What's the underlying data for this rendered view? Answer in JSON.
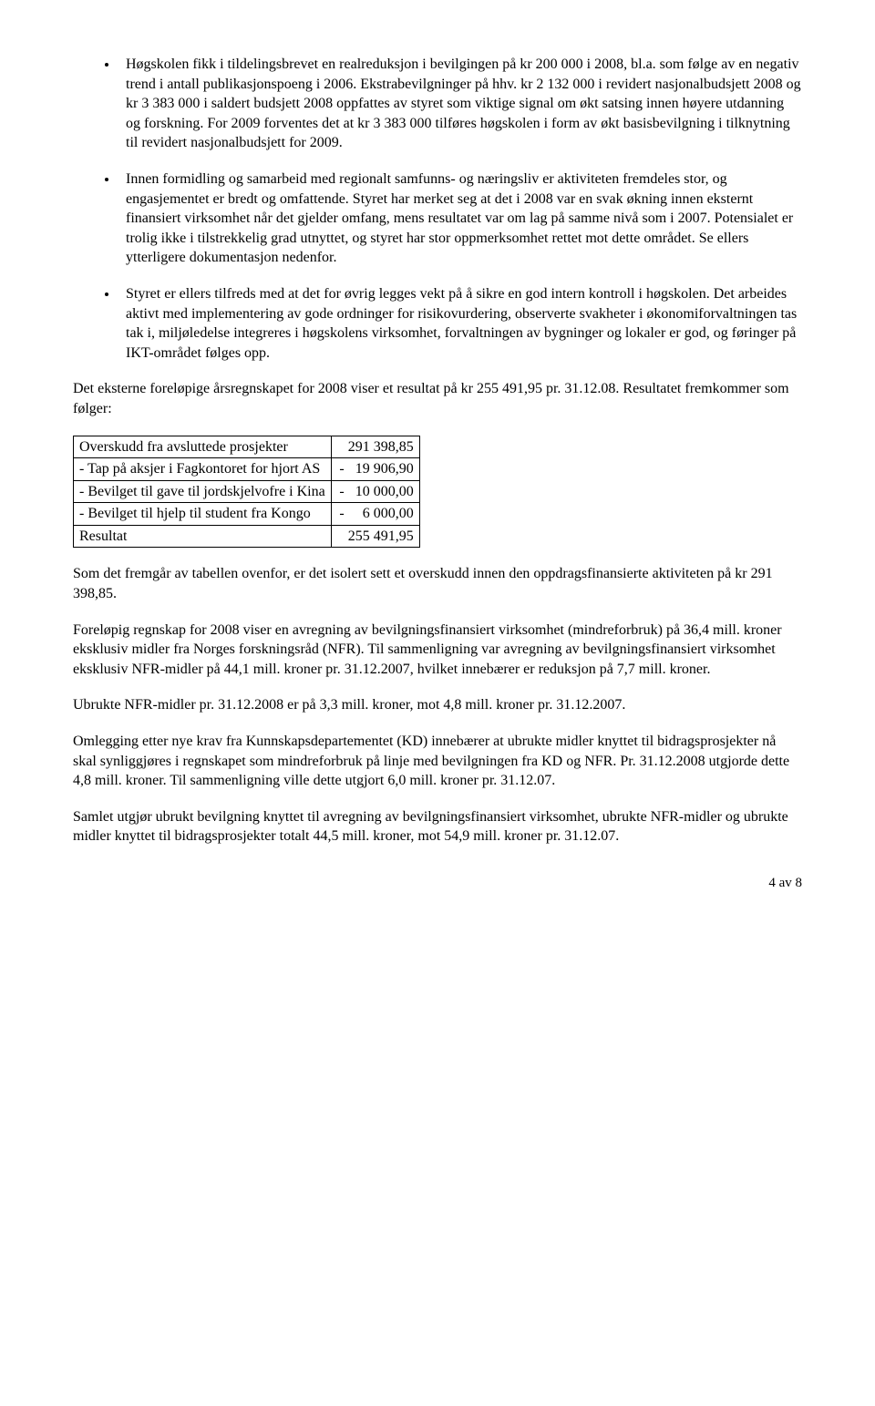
{
  "bullets": [
    "Høgskolen fikk i tildelingsbrevet en realreduksjon i bevilgingen på kr 200 000 i 2008, bl.a. som følge av en negativ trend i antall publikasjonspoeng i 2006. Ekstrabevilgninger på hhv. kr 2 132 000 i revidert nasjonalbudsjett 2008 og kr 3 383 000 i saldert budsjett 2008 oppfattes av styret som viktige signal om økt satsing innen høyere utdanning og forskning. For 2009 forventes det at kr 3 383 000 tilføres høgskolen i form av økt basisbevilgning i tilknytning til revidert nasjonalbudsjett for 2009.",
    "Innen formidling og samarbeid med regionalt samfunns- og næringsliv er aktiviteten fremdeles stor, og engasjementet er bredt og omfattende. Styret har merket seg at det i 2008 var en svak økning innen eksternt finansiert virksomhet når det gjelder omfang, mens resultatet var om lag på samme nivå som i 2007. Potensialet er trolig ikke i tilstrekkelig grad utnyttet, og styret har stor oppmerksomhet rettet mot dette området. Se ellers ytterligere dokumentasjon nedenfor.",
    "Styret er ellers tilfreds med at det for øvrig legges vekt på å sikre en god intern kontroll i høgskolen. Det arbeides aktivt med implementering av gode ordninger for risikovurdering, observerte svakheter i økonomiforvaltningen tas tak i, miljøledelse integreres i høgskolens virksomhet, forvaltningen av bygninger og lokaler er god, og føringer på IKT-området følges opp."
  ],
  "intro_after_bullets": "Det eksterne foreløpige årsregnskapet for 2008 viser et resultat på kr 255 491,95 pr. 31.12.08. Resultatet fremkommer som følger:",
  "table": {
    "rows": [
      {
        "label": "Overskudd fra avsluttede prosjekter",
        "value": "   291 398,85"
      },
      {
        "label": "- Tap på aksjer i Fagkontoret for hjort AS",
        "value": "-   19 906,90"
      },
      {
        "label": "- Bevilget til gave til jordskjelvofre i Kina",
        "value": "-   10 000,00"
      },
      {
        "label": "- Bevilget til hjelp til student fra Kongo",
        "value": "-     6 000,00"
      },
      {
        "label": "Resultat",
        "value": "   255 491,95"
      }
    ]
  },
  "paragraphs_after_table": [
    "Som det fremgår av tabellen ovenfor, er det isolert sett et overskudd innen den oppdragsfinansierte aktiviteten på kr 291 398,85.",
    "Foreløpig regnskap for 2008 viser en avregning av bevilgningsfinansiert virksomhet (mindreforbruk) på 36,4 mill. kroner eksklusiv midler fra Norges forskningsråd (NFR). Til sammenligning var avregning av bevilgningsfinansiert virksomhet eksklusiv NFR-midler på 44,1 mill. kroner pr. 31.12.2007, hvilket innebærer er reduksjon på 7,7 mill. kroner.",
    "Ubrukte NFR-midler pr. 31.12.2008 er på 3,3 mill. kroner, mot 4,8 mill. kroner pr. 31.12.2007.",
    "Omlegging etter nye krav fra Kunnskapsdepartementet (KD) innebærer at ubrukte midler knyttet til bidragsprosjekter nå skal synliggjøres i regnskapet som mindreforbruk på linje med bevilgningen fra KD og NFR. Pr. 31.12.2008 utgjorde dette 4,8 mill. kroner. Til sammenligning ville dette utgjort 6,0 mill. kroner pr. 31.12.07.",
    "Samlet utgjør ubrukt bevilgning knyttet til avregning av bevilgningsfinansiert virksomhet, ubrukte NFR-midler og ubrukte midler knyttet til bidragsprosjekter totalt 44,5 mill. kroner, mot 54,9 mill. kroner pr. 31.12.07."
  ],
  "page_num": "4 av 8"
}
